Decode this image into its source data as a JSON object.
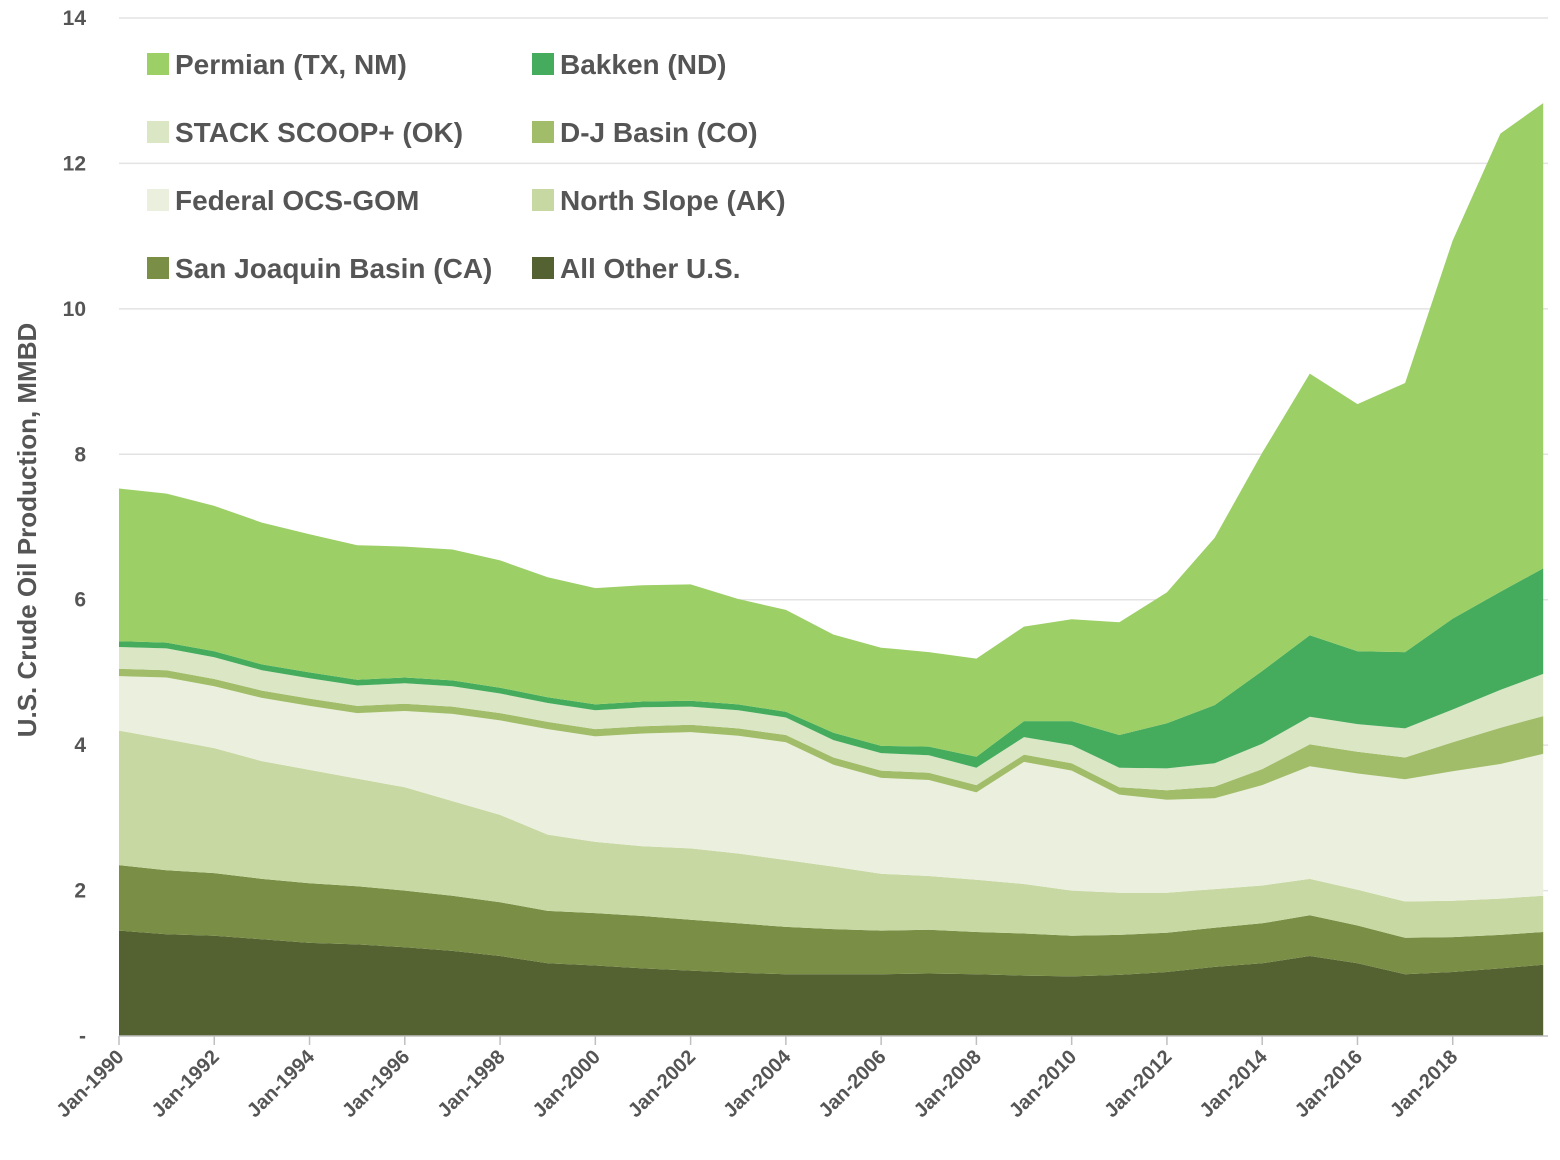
{
  "chart_data": {
    "type": "area",
    "stacked": true,
    "title": "",
    "xlabel": "",
    "ylabel": "U.S. Crude Oil Production, MMBD",
    "ylim": [
      0,
      14
    ],
    "xlim": [
      1990,
      2020
    ],
    "yticks": [
      {
        "value": 0,
        "label": "-"
      },
      {
        "value": 2,
        "label": "2"
      },
      {
        "value": 4,
        "label": "4"
      },
      {
        "value": 6,
        "label": "6"
      },
      {
        "value": 8,
        "label": "8"
      },
      {
        "value": 10,
        "label": "10"
      },
      {
        "value": 12,
        "label": "12"
      },
      {
        "value": 14,
        "label": "14"
      }
    ],
    "xticks": [
      {
        "value": 1990,
        "label": "Jan-1990"
      },
      {
        "value": 1992,
        "label": "Jan-1992"
      },
      {
        "value": 1994,
        "label": "Jan-1994"
      },
      {
        "value": 1996,
        "label": "Jan-1996"
      },
      {
        "value": 1998,
        "label": "Jan-1998"
      },
      {
        "value": 2000,
        "label": "Jan-2000"
      },
      {
        "value": 2002,
        "label": "Jan-2002"
      },
      {
        "value": 2004,
        "label": "Jan-2004"
      },
      {
        "value": 2006,
        "label": "Jan-2006"
      },
      {
        "value": 2008,
        "label": "Jan-2008"
      },
      {
        "value": 2010,
        "label": "Jan-2010"
      },
      {
        "value": 2012,
        "label": "Jan-2012"
      },
      {
        "value": 2014,
        "label": "Jan-2014"
      },
      {
        "value": 2016,
        "label": "Jan-2016"
      },
      {
        "value": 2018,
        "label": "Jan-2018"
      }
    ],
    "grid": true,
    "legend_position": "top-left",
    "x": [
      1990,
      1991,
      1992,
      1993,
      1994,
      1995,
      1996,
      1997,
      1998,
      1999,
      2000,
      2001,
      2002,
      2003,
      2004,
      2005,
      2006,
      2007,
      2008,
      2009,
      2010,
      2011,
      2012,
      2013,
      2014,
      2015,
      2016,
      2017,
      2018,
      2019,
      2019.9
    ],
    "series": [
      {
        "name": "All Other U.S.",
        "color": "#546131",
        "values": [
          1.45,
          1.4,
          1.38,
          1.33,
          1.28,
          1.26,
          1.22,
          1.17,
          1.1,
          1.0,
          0.97,
          0.93,
          0.9,
          0.87,
          0.85,
          0.85,
          0.85,
          0.86,
          0.85,
          0.83,
          0.82,
          0.84,
          0.88,
          0.95,
          1.0,
          1.1,
          1.0,
          0.85,
          0.88,
          0.93,
          0.98
        ]
      },
      {
        "name": "San Joaquin Basin (CA)",
        "color": "#7a8f45",
        "values": [
          0.9,
          0.88,
          0.86,
          0.83,
          0.82,
          0.8,
          0.78,
          0.76,
          0.74,
          0.72,
          0.72,
          0.72,
          0.7,
          0.68,
          0.65,
          0.62,
          0.6,
          0.6,
          0.58,
          0.58,
          0.56,
          0.55,
          0.54,
          0.54,
          0.55,
          0.56,
          0.52,
          0.5,
          0.48,
          0.46,
          0.45
        ]
      },
      {
        "name": "North Slope (AK)",
        "color": "#c8d8a2",
        "values": [
          1.85,
          1.8,
          1.72,
          1.62,
          1.56,
          1.48,
          1.42,
          1.3,
          1.2,
          1.05,
          0.98,
          0.96,
          0.98,
          0.96,
          0.92,
          0.86,
          0.78,
          0.74,
          0.72,
          0.68,
          0.62,
          0.58,
          0.55,
          0.53,
          0.52,
          0.5,
          0.49,
          0.5,
          0.5,
          0.5,
          0.5
        ]
      },
      {
        "name": "Federal OCS-GOM",
        "color": "#ebf0de",
        "values": [
          0.75,
          0.85,
          0.85,
          0.87,
          0.88,
          0.9,
          1.05,
          1.2,
          1.3,
          1.45,
          1.45,
          1.55,
          1.6,
          1.62,
          1.62,
          1.4,
          1.32,
          1.32,
          1.2,
          1.68,
          1.65,
          1.35,
          1.28,
          1.25,
          1.38,
          1.55,
          1.6,
          1.68,
          1.78,
          1.85,
          1.95
        ]
      },
      {
        "name": "D-J Basin (CO)",
        "color": "#a2bd6a",
        "values": [
          0.1,
          0.1,
          0.1,
          0.1,
          0.1,
          0.1,
          0.1,
          0.1,
          0.1,
          0.1,
          0.1,
          0.1,
          0.1,
          0.1,
          0.1,
          0.1,
          0.1,
          0.1,
          0.1,
          0.1,
          0.1,
          0.1,
          0.13,
          0.16,
          0.22,
          0.3,
          0.3,
          0.3,
          0.4,
          0.5,
          0.52
        ]
      },
      {
        "name": "STACK SCOOP+ (OK)",
        "color": "#dbe6c4",
        "values": [
          0.3,
          0.3,
          0.3,
          0.28,
          0.28,
          0.28,
          0.28,
          0.28,
          0.27,
          0.26,
          0.26,
          0.26,
          0.25,
          0.25,
          0.24,
          0.24,
          0.24,
          0.24,
          0.24,
          0.24,
          0.25,
          0.27,
          0.3,
          0.32,
          0.35,
          0.38,
          0.38,
          0.4,
          0.45,
          0.52,
          0.58
        ]
      },
      {
        "name": "Bakken (ND)",
        "color": "#45ac5d",
        "values": [
          0.08,
          0.08,
          0.08,
          0.08,
          0.08,
          0.08,
          0.08,
          0.08,
          0.08,
          0.08,
          0.08,
          0.08,
          0.08,
          0.08,
          0.08,
          0.1,
          0.1,
          0.12,
          0.15,
          0.22,
          0.33,
          0.45,
          0.62,
          0.8,
          1.0,
          1.12,
          1.0,
          1.05,
          1.25,
          1.35,
          1.45
        ]
      },
      {
        "name": "Permian (TX, NM)",
        "color": "#9ccf65",
        "values": [
          2.1,
          2.05,
          2.0,
          1.95,
          1.9,
          1.85,
          1.8,
          1.8,
          1.75,
          1.65,
          1.6,
          1.6,
          1.6,
          1.45,
          1.4,
          1.35,
          1.35,
          1.3,
          1.35,
          1.3,
          1.4,
          1.55,
          1.8,
          2.3,
          3.0,
          3.6,
          3.4,
          3.7,
          5.2,
          6.3,
          6.4
        ]
      }
    ]
  }
}
